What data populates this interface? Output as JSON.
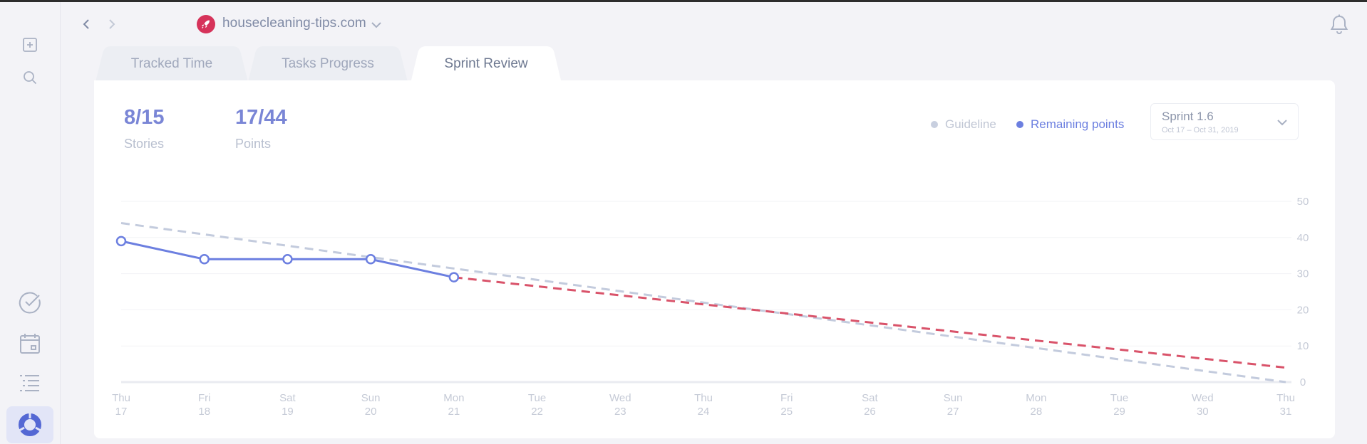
{
  "sidebar": {
    "items": [
      {
        "icon": "add-note-icon"
      },
      {
        "icon": "search-icon"
      },
      {
        "icon": "check-circle-icon"
      },
      {
        "icon": "calendar-icon"
      },
      {
        "icon": "list-icon"
      },
      {
        "icon": "donut-chart-icon",
        "active": true
      }
    ]
  },
  "header": {
    "site_name": "housecleaning-tips.com",
    "site_logo_icon": "rocket-icon"
  },
  "tabs": [
    {
      "label": "Tracked Time",
      "active": false
    },
    {
      "label": "Tasks Progress",
      "active": false
    },
    {
      "label": "Sprint Review",
      "active": true
    }
  ],
  "stats": {
    "stories": {
      "value": "8/15",
      "label": "Stories"
    },
    "points": {
      "value": "17/44",
      "label": "Points"
    }
  },
  "legend": {
    "guideline": "Guideline",
    "remaining": "Remaining points"
  },
  "sprint": {
    "title": "Sprint 1.6",
    "range": "Oct 17 – Oct 31, 2019"
  },
  "colors": {
    "accent": "#7a86d6",
    "line": "#6c7fe0",
    "guideline": "#c3cbdd",
    "forecast": "#d9536a"
  },
  "chart_data": {
    "type": "line",
    "x": [
      {
        "day": "Thu",
        "date": "17"
      },
      {
        "day": "Fri",
        "date": "18"
      },
      {
        "day": "Sat",
        "date": "19"
      },
      {
        "day": "Sun",
        "date": "20"
      },
      {
        "day": "Mon",
        "date": "21"
      },
      {
        "day": "Tue",
        "date": "22"
      },
      {
        "day": "Wed",
        "date": "23"
      },
      {
        "day": "Thu",
        "date": "24"
      },
      {
        "day": "Fri",
        "date": "25"
      },
      {
        "day": "Sat",
        "date": "26"
      },
      {
        "day": "Sun",
        "date": "27"
      },
      {
        "day": "Mon",
        "date": "28"
      },
      {
        "day": "Tue",
        "date": "29"
      },
      {
        "day": "Wed",
        "date": "30"
      },
      {
        "day": "Thu",
        "date": "31"
      }
    ],
    "yticks": [
      0,
      10,
      20,
      30,
      40,
      50
    ],
    "ylim": [
      0,
      50
    ],
    "series": [
      {
        "name": "Guideline",
        "style": "dashed",
        "points": [
          [
            0,
            44
          ],
          [
            14,
            0
          ]
        ]
      },
      {
        "name": "Remaining points",
        "style": "solid-markers",
        "points": [
          [
            0,
            39
          ],
          [
            1,
            34
          ],
          [
            2,
            34
          ],
          [
            3,
            34
          ],
          [
            4,
            29
          ]
        ]
      },
      {
        "style": "dashed",
        "points": [
          [
            4,
            29
          ],
          [
            14,
            4
          ]
        ]
      }
    ]
  }
}
